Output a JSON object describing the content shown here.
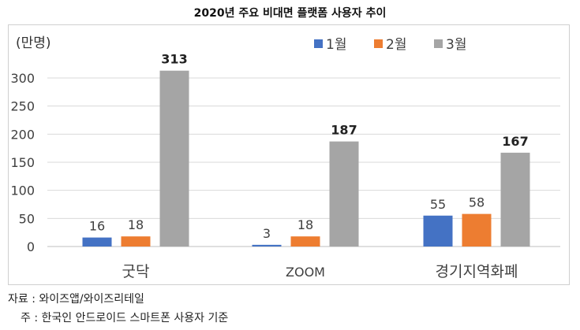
{
  "chart_data": {
    "type": "bar",
    "title": "2020년 주요 비대면 플랫폼 사용자 추이",
    "ylabel": "(만명)",
    "categories": [
      "굿닥",
      "ZOOM",
      "경기지역화폐"
    ],
    "series": [
      {
        "name": "1월",
        "color": "#4472C4",
        "values": [
          16,
          3,
          55
        ]
      },
      {
        "name": "2월",
        "color": "#ED7D31",
        "values": [
          18,
          18,
          58
        ]
      },
      {
        "name": "3월",
        "color": "#A5A5A5",
        "values": [
          313,
          187,
          167
        ]
      }
    ],
    "ylim": [
      0,
      300
    ],
    "yticks": [
      0,
      50,
      100,
      150,
      200,
      250,
      300
    ],
    "grid": true,
    "legend": "top-right",
    "bold_labels_series": "3월"
  },
  "notes": {
    "source": "자료 : 와이즈앱/와이즈리테일",
    "footnote": "주 : 한국인 안드로이드 스마트폰 사용자 기준"
  }
}
